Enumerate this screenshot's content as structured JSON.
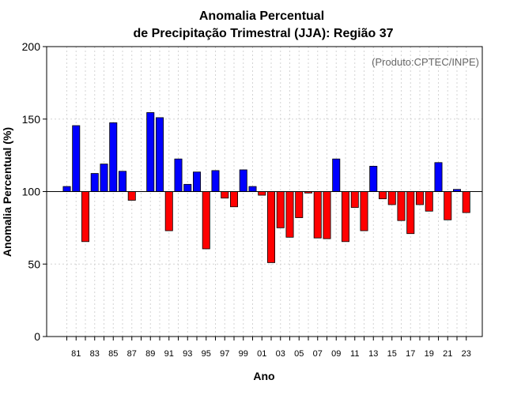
{
  "chart_data": {
    "type": "bar",
    "title_line1": "Anomalia Percentual",
    "title_line2": "de Precipitação Trimestral (JJA): Região 37",
    "xlabel": "Ano",
    "ylabel": "Anomalia Percentual (%)",
    "annotation": "(Produto:CPTEC/INPE)",
    "baseline": 100,
    "ylim": [
      0,
      200
    ],
    "yticks": [
      0,
      50,
      100,
      150,
      200
    ],
    "grid": true,
    "colors": {
      "above": "#0000ff",
      "below": "#ff0000",
      "edge": "#000000",
      "grid": "#d3d3d3"
    },
    "years": [
      1980,
      1981,
      1982,
      1983,
      1984,
      1985,
      1986,
      1987,
      1988,
      1989,
      1990,
      1991,
      1992,
      1993,
      1994,
      1995,
      1996,
      1997,
      1998,
      1999,
      2000,
      2001,
      2002,
      2003,
      2004,
      2005,
      2006,
      2007,
      2008,
      2009,
      2010,
      2011,
      2012,
      2013,
      2014,
      2015,
      2016,
      2017,
      2018,
      2019,
      2020,
      2021,
      2022,
      2023
    ],
    "values": [
      103.5,
      145.5,
      65.5,
      112.5,
      119,
      147.5,
      114,
      94,
      null,
      154.5,
      151,
      73,
      122.5,
      105,
      113.5,
      60.5,
      114.5,
      95.5,
      89.5,
      115,
      103.5,
      97.5,
      51,
      75,
      68.5,
      82,
      99,
      68,
      67.5,
      122.5,
      65.5,
      89,
      73,
      117.5,
      95,
      91,
      80,
      71,
      91,
      86.5,
      120,
      80.5,
      101.5,
      85.5
    ],
    "xtick_labels": [
      "81",
      "83",
      "85",
      "87",
      "89",
      "91",
      "93",
      "95",
      "97",
      "99",
      "01",
      "03",
      "05",
      "07",
      "09",
      "11",
      "13",
      "15",
      "17",
      "19",
      "21",
      "23"
    ]
  }
}
